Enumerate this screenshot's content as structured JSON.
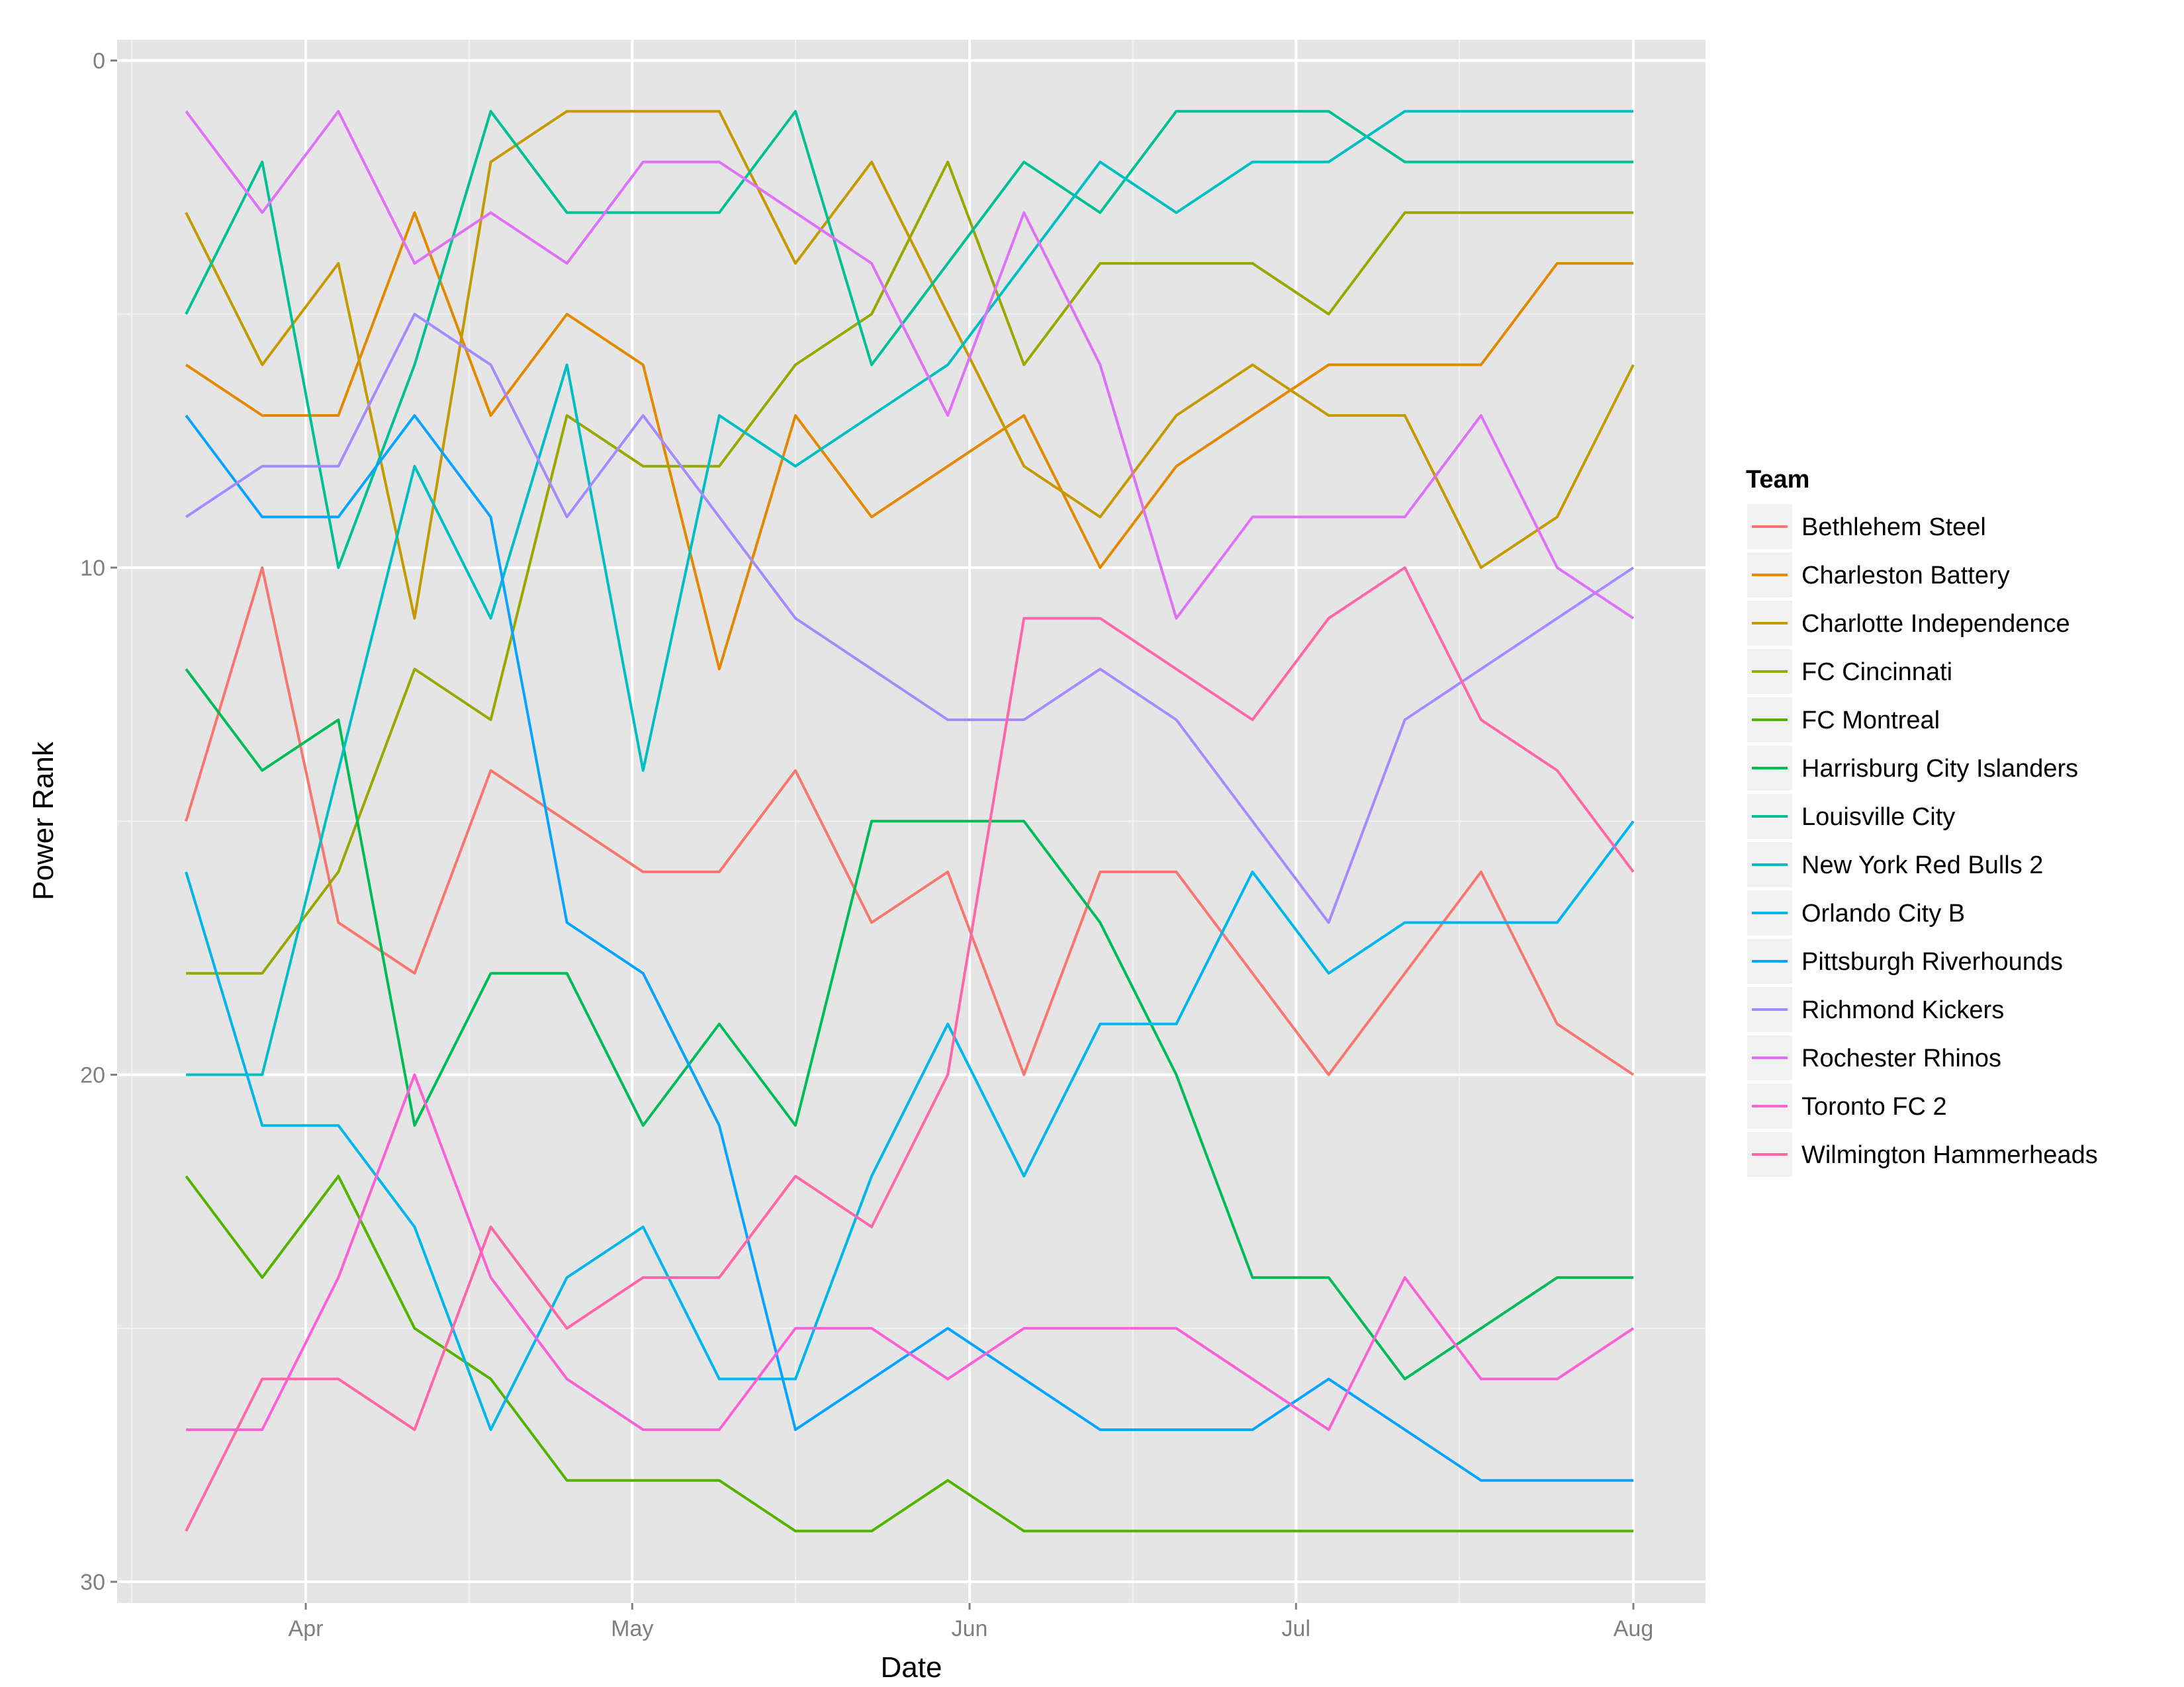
{
  "chart_data": {
    "type": "line",
    "title": "",
    "xlabel": "Date",
    "ylabel": "Power Rank",
    "y_reversed": true,
    "ylim": [
      0,
      30
    ],
    "yticks": [
      0,
      10,
      20,
      30
    ],
    "xticks": [
      {
        "date": "2015-04-01",
        "label": "Apr"
      },
      {
        "date": "2015-05-01",
        "label": "May"
      },
      {
        "date": "2015-06-01",
        "label": "Jun"
      },
      {
        "date": "2015-07-01",
        "label": "Jul"
      },
      {
        "date": "2015-08-01",
        "label": "Aug"
      }
    ],
    "grid": true,
    "legend_title": "Team",
    "legend_position": "right",
    "x": [
      "2015-03-21",
      "2015-03-28",
      "2015-04-04",
      "2015-04-11",
      "2015-04-18",
      "2015-04-25",
      "2015-05-02",
      "2015-05-09",
      "2015-05-16",
      "2015-05-23",
      "2015-05-30",
      "2015-06-06",
      "2015-06-13",
      "2015-06-20",
      "2015-06-27",
      "2015-07-04",
      "2015-07-11",
      "2015-07-18",
      "2015-07-25",
      "2015-08-01"
    ],
    "series": [
      {
        "name": "Bethlehem Steel",
        "color": "#F8766D",
        "values": [
          15,
          10,
          17,
          18,
          14,
          15,
          16,
          16,
          14,
          17,
          16,
          20,
          16,
          16,
          18,
          20,
          18,
          16,
          19,
          20
        ]
      },
      {
        "name": "Charleston Battery",
        "color": "#E38900",
        "values": [
          6,
          7,
          7,
          3,
          7,
          5,
          6,
          12,
          7,
          9,
          8,
          7,
          10,
          8,
          7,
          6,
          6,
          6,
          4,
          4
        ]
      },
      {
        "name": "Charlotte Independence",
        "color": "#C49A00",
        "values": [
          3,
          6,
          4,
          11,
          2,
          1,
          1,
          1,
          4,
          2,
          5,
          8,
          9,
          7,
          6,
          7,
          7,
          10,
          9,
          6
        ]
      },
      {
        "name": "FC Cincinnati",
        "color": "#99A800",
        "values": [
          18,
          18,
          16,
          12,
          13,
          7,
          8,
          8,
          6,
          5,
          2,
          6,
          4,
          4,
          4,
          5,
          3,
          3,
          3,
          3
        ]
      },
      {
        "name": "FC Montreal",
        "color": "#53B400",
        "values": [
          22,
          24,
          22,
          25,
          26,
          28,
          28,
          28,
          29,
          29,
          28,
          29,
          29,
          29,
          29,
          29,
          29,
          29,
          29,
          29
        ]
      },
      {
        "name": "Harrisburg City Islanders",
        "color": "#00BC56",
        "values": [
          12,
          14,
          13,
          21,
          18,
          18,
          21,
          19,
          21,
          15,
          15,
          15,
          17,
          20,
          24,
          24,
          26,
          25,
          24,
          24
        ]
      },
      {
        "name": "Louisville City",
        "color": "#00C094",
        "values": [
          5,
          2,
          10,
          6,
          1,
          3,
          3,
          3,
          1,
          6,
          4,
          2,
          3,
          1,
          1,
          1,
          2,
          2,
          2,
          2
        ]
      },
      {
        "name": "New York Red Bulls 2",
        "color": "#00BFC4",
        "values": [
          20,
          20,
          14,
          8,
          11,
          6,
          14,
          7,
          8,
          7,
          6,
          4,
          2,
          3,
          2,
          2,
          1,
          1,
          1,
          1
        ]
      },
      {
        "name": "Orlando City B",
        "color": "#00B6EB",
        "values": [
          16,
          21,
          21,
          23,
          27,
          24,
          23,
          26,
          26,
          22,
          19,
          22,
          19,
          19,
          16,
          18,
          17,
          17,
          17,
          15
        ]
      },
      {
        "name": "Pittsburgh Riverhounds",
        "color": "#06A4FF",
        "values": [
          7,
          9,
          9,
          7,
          9,
          17,
          18,
          21,
          27,
          26,
          25,
          26,
          27,
          27,
          27,
          26,
          27,
          28,
          28,
          28
        ]
      },
      {
        "name": "Richmond Kickers",
        "color": "#A58AFF",
        "values": [
          9,
          8,
          8,
          5,
          6,
          9,
          7,
          9,
          11,
          12,
          13,
          13,
          12,
          13,
          15,
          17,
          13,
          12,
          11,
          10
        ]
      },
      {
        "name": "Rochester Rhinos",
        "color": "#DF70F8",
        "values": [
          1,
          3,
          1,
          4,
          3,
          4,
          2,
          2,
          3,
          4,
          7,
          3,
          6,
          11,
          9,
          9,
          9,
          7,
          10,
          11
        ]
      },
      {
        "name": "Toronto FC 2",
        "color": "#FB61D7",
        "values": [
          27,
          27,
          24,
          20,
          24,
          26,
          27,
          27,
          25,
          25,
          26,
          25,
          25,
          25,
          26,
          27,
          24,
          26,
          26,
          25
        ]
      },
      {
        "name": "Wilmington Hammerheads",
        "color": "#FF66A8",
        "values": [
          29,
          26,
          26,
          27,
          23,
          25,
          24,
          24,
          22,
          23,
          20,
          11,
          11,
          12,
          13,
          11,
          10,
          13,
          14,
          16
        ]
      }
    ]
  }
}
